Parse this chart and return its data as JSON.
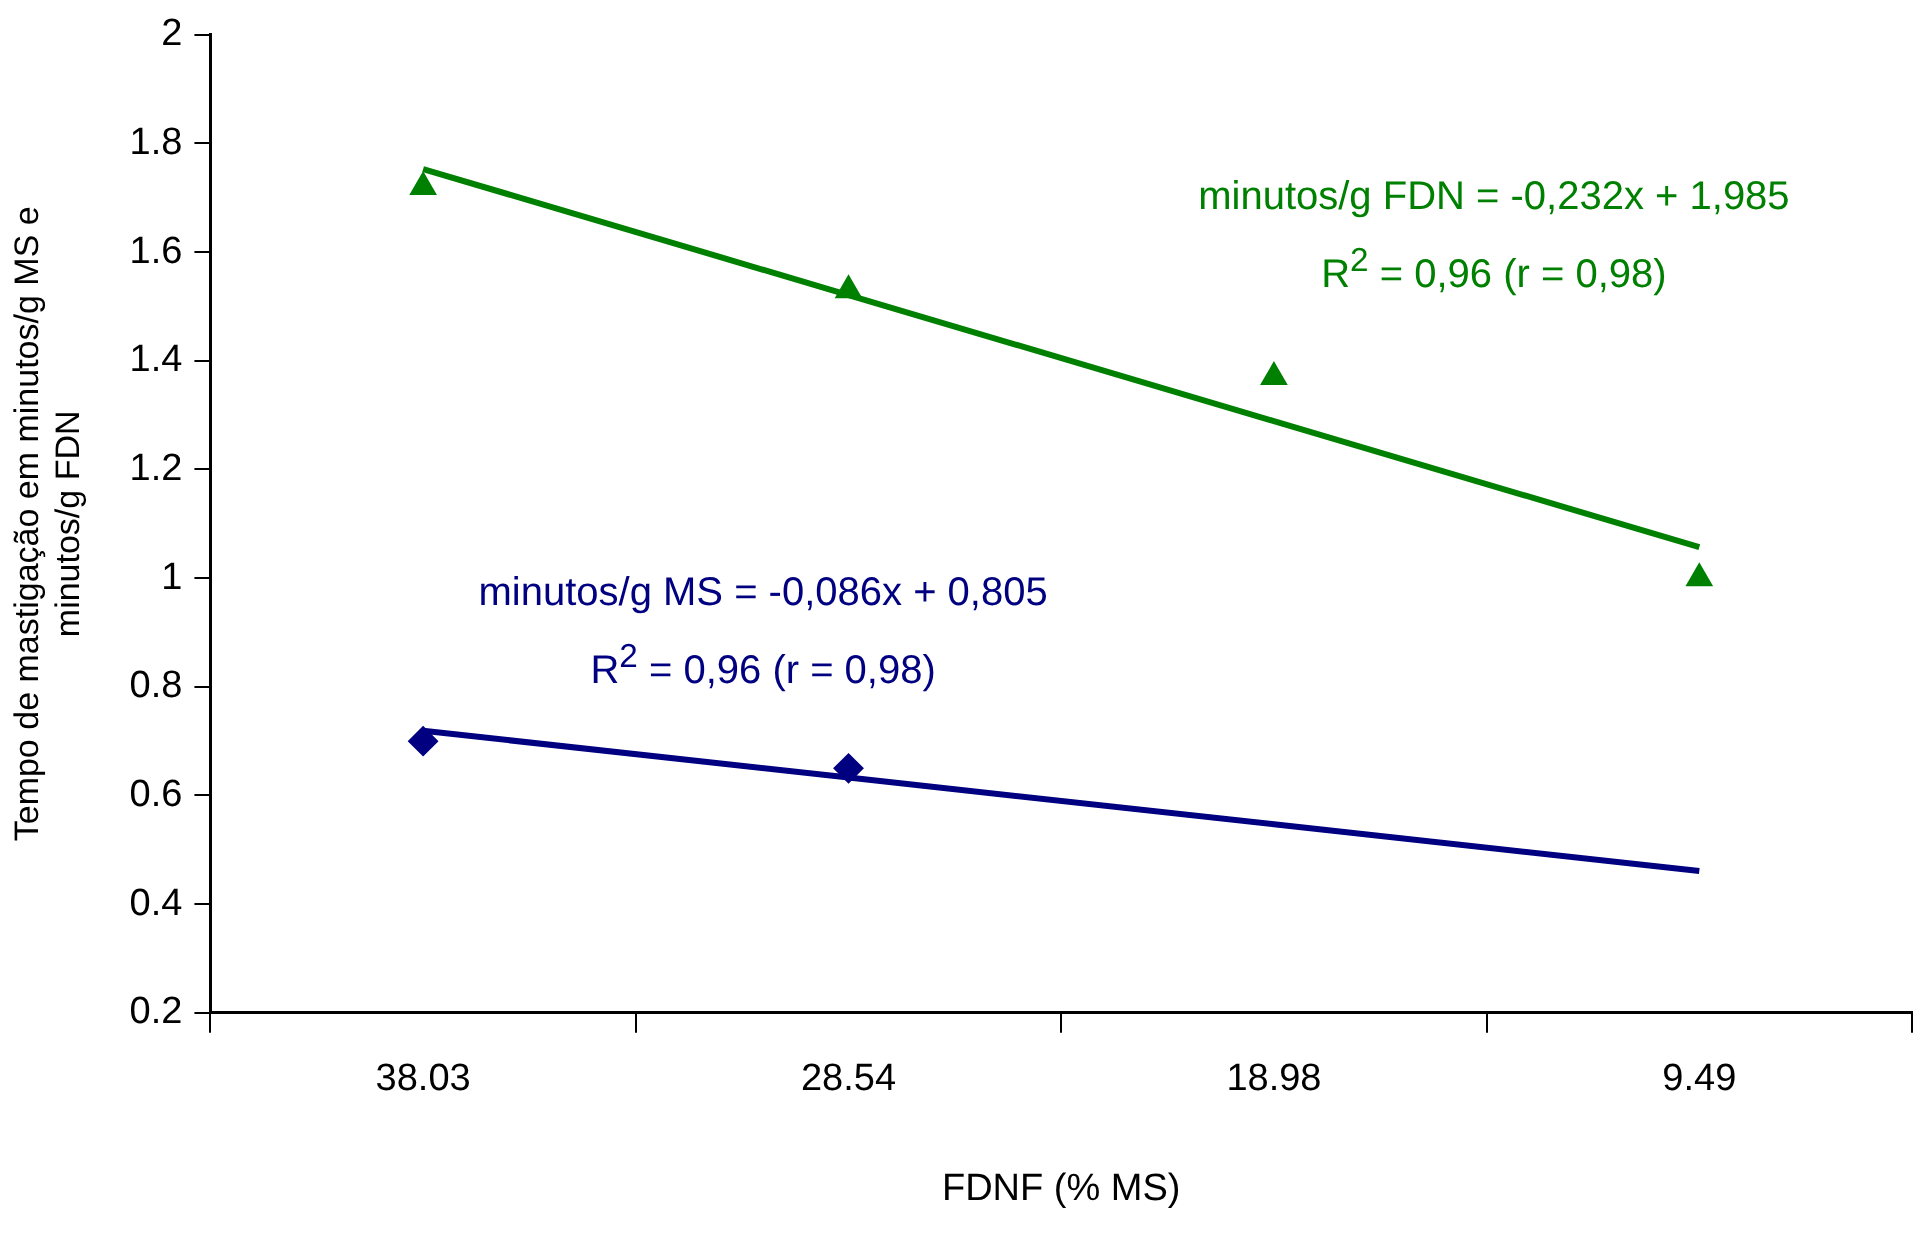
{
  "chart_data": {
    "type": "scatter",
    "xlabel": "FDNF (% MS)",
    "ylabel": "Tempo de mastigação em minutos/g MS e minutos/g FDN",
    "categories": [
      "38.03",
      "28.54",
      "18.98",
      "9.49"
    ],
    "series": [
      {
        "color": "#008000",
        "marker": "triangle",
        "values": [
          1.72,
          1.53,
          1.37,
          1.0
        ]
      },
      {
        "type": "line",
        "color": "#008000",
        "marker": "none",
        "values": [
          1.753,
          1.521,
          1.289,
          1.057
        ]
      },
      {
        "color": "#000080",
        "marker": "diamond",
        "values": [
          0.7,
          0.65,
          null,
          null
        ]
      },
      {
        "type": "line",
        "color": "#000080",
        "marker": "none",
        "values": [
          0.719,
          0.633,
          0.547,
          0.461
        ]
      }
    ],
    "ylim": [
      0.2,
      2
    ],
    "yticks": [
      0.2,
      0.4,
      0.6,
      0.8,
      1,
      1.2,
      1.4,
      1.6,
      1.8,
      2
    ],
    "grid": false,
    "legend": false,
    "annotations": [
      "minutos/g FDN = -0,232x + 1,985",
      "R$^{2}$ = 0,96 (r = 0,98)",
      "minutos/g MS = -0,086x + 0,805",
      "R$^{2}$ = 0,96 (r = 0,98)"
    ]
  }
}
